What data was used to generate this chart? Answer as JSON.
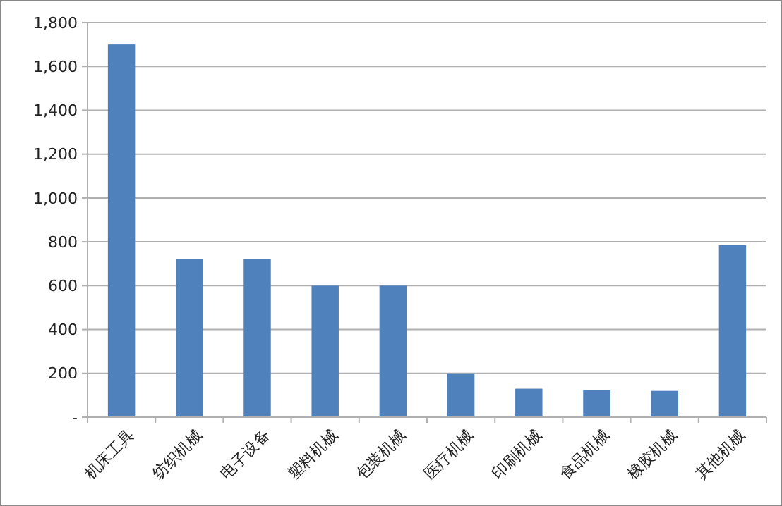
{
  "chart_data": {
    "type": "bar",
    "categories": [
      "机床工具",
      "纺织机械",
      "电子设备",
      "塑料机械",
      "包装机械",
      "医疗机械",
      "印刷机械",
      "食品机械",
      "橡胶机械",
      "其他机械"
    ],
    "values": [
      1700,
      720,
      720,
      600,
      600,
      200,
      130,
      125,
      120,
      785
    ],
    "color": "#4f81bd",
    "ylim": [
      0,
      1800
    ],
    "yticks": [
      {
        "value": 0,
        "label": "-"
      },
      {
        "value": 200,
        "label": "200"
      },
      {
        "value": 400,
        "label": "400"
      },
      {
        "value": 600,
        "label": "600"
      },
      {
        "value": 800,
        "label": "800"
      },
      {
        "value": 1000,
        "label": "1,000"
      },
      {
        "value": 1200,
        "label": "1,200"
      },
      {
        "value": 1400,
        "label": "1,400"
      },
      {
        "value": 1600,
        "label": "1,600"
      },
      {
        "value": 1800,
        "label": "1,800"
      }
    ],
    "grid": "y"
  }
}
